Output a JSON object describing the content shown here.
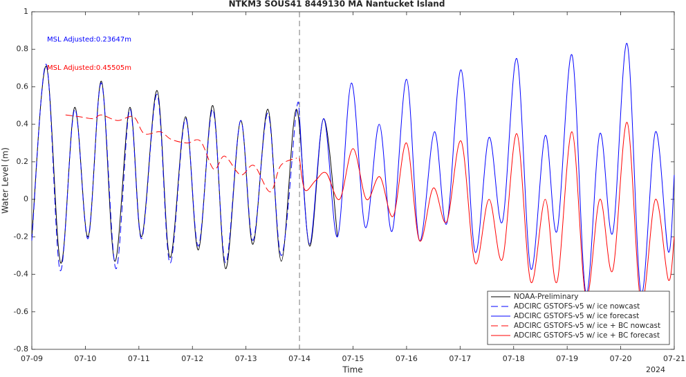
{
  "chart_data": {
    "type": "line",
    "title": "NTKM3 SOUS41 8449130 MA Nantucket Island",
    "x_label": "Time",
    "y_label": "Water Level (m)",
    "year_label": "2024",
    "annotations": [
      {
        "text": "MSL Adjusted:0.23647m",
        "color": "#0000ff"
      },
      {
        "text": "MSL Adjusted:0.45505m",
        "color": "#ff0000"
      }
    ],
    "xlim": [
      0,
      12
    ],
    "xticks": [
      {
        "value": 0,
        "label": "07-09"
      },
      {
        "value": 1,
        "label": "07-10"
      },
      {
        "value": 2,
        "label": "07-11"
      },
      {
        "value": 3,
        "label": "07-12"
      },
      {
        "value": 4,
        "label": "07-13"
      },
      {
        "value": 5,
        "label": "07-14"
      },
      {
        "value": 6,
        "label": "07-15"
      },
      {
        "value": 7,
        "label": "07-16"
      },
      {
        "value": 8,
        "label": "07-17"
      },
      {
        "value": 9,
        "label": "07-18"
      },
      {
        "value": 10,
        "label": "07-19"
      },
      {
        "value": 11,
        "label": "07-20"
      },
      {
        "value": 12,
        "label": "07-21"
      }
    ],
    "ylim": [
      -0.8,
      1
    ],
    "yticks": [
      -0.8,
      -0.6,
      -0.4,
      -0.2,
      0,
      0.2,
      0.4,
      0.6,
      0.8,
      1
    ],
    "divider_x": 5,
    "series": [
      {
        "name": "NOAA-Preliminary",
        "color": "#000000",
        "dash": false,
        "x": [
          0,
          0.27,
          0.54,
          0.8,
          1.05,
          1.3,
          1.55,
          1.83,
          2.05,
          2.34,
          2.58,
          2.87,
          3.11,
          3.38,
          3.62,
          3.9,
          4.13,
          4.41,
          4.66,
          4.94,
          5.19,
          5.45,
          5.71
        ],
        "values": [
          -0.2,
          0.71,
          -0.34,
          0.49,
          -0.2,
          0.63,
          -0.33,
          0.49,
          -0.2,
          0.58,
          -0.31,
          0.44,
          -0.27,
          0.5,
          -0.37,
          0.42,
          -0.24,
          0.48,
          -0.33,
          0.48,
          -0.25,
          0.43,
          -0.2
        ]
      },
      {
        "name": "ADCIRC GSTOFS-v5 w/ ice nowcast",
        "color": "#0000ff",
        "dash": true,
        "x": [
          0,
          0.27,
          0.53,
          0.8,
          1.05,
          1.3,
          1.57,
          1.83,
          2.05,
          2.34,
          2.58,
          2.87,
          3.11,
          3.38,
          3.62,
          3.9,
          4.13,
          4.41,
          4.66,
          4.94,
          5
        ],
        "values": [
          -0.22,
          0.72,
          -0.38,
          0.48,
          -0.21,
          0.62,
          -0.37,
          0.48,
          -0.21,
          0.56,
          -0.34,
          0.43,
          -0.25,
          0.48,
          -0.34,
          0.42,
          -0.22,
          0.46,
          -0.3,
          0.47,
          0.44
        ]
      },
      {
        "name": "ADCIRC GSTOFS-v5 w/ ice forecast",
        "color": "#0000ff",
        "dash": false,
        "x": [
          5,
          5.19,
          5.45,
          5.71,
          5.97,
          6.23,
          6.49,
          6.73,
          7.0,
          7.24,
          7.52,
          7.75,
          8.02,
          8.28,
          8.54,
          8.79,
          9.06,
          9.32,
          9.59,
          9.81,
          10.09,
          10.35,
          10.61,
          10.85,
          11.12,
          11.38,
          11.65,
          11.89,
          12
        ],
        "values": [
          0.44,
          -0.24,
          0.43,
          -0.2,
          0.62,
          -0.15,
          0.4,
          -0.17,
          0.64,
          -0.22,
          0.36,
          -0.13,
          0.69,
          -0.28,
          0.33,
          -0.12,
          0.75,
          -0.37,
          0.34,
          -0.17,
          0.77,
          -0.5,
          0.35,
          -0.18,
          0.83,
          -0.5,
          0.36,
          -0.28,
          0.13
        ]
      },
      {
        "name": "ADCIRC GSTOFS-v5 w/ ice + BC nowcast",
        "color": "#ff0000",
        "dash": true,
        "x": [
          0.63,
          0.9,
          1.15,
          1.3,
          1.6,
          1.9,
          2.1,
          2.4,
          2.6,
          2.9,
          3.15,
          3.4,
          3.6,
          3.9,
          4.15,
          4.45,
          4.65,
          4.95
        ],
        "values": [
          0.45,
          0.44,
          0.43,
          0.45,
          0.42,
          0.44,
          0.35,
          0.36,
          0.32,
          0.3,
          0.31,
          0.16,
          0.23,
          0.13,
          0.18,
          0.04,
          0.18,
          0.22
        ]
      },
      {
        "name": "ADCIRC GSTOFS-v5 w/ ice + BC forecast",
        "color": "#ff0000",
        "dash": false,
        "x": [
          5.0,
          5.1,
          5.3,
          5.5,
          5.75,
          6.0,
          6.25,
          6.5,
          6.75,
          7.0,
          7.24,
          7.5,
          7.75,
          8.02,
          8.28,
          8.54,
          8.79,
          9.06,
          9.32,
          9.59,
          9.81,
          10.09,
          10.35,
          10.61,
          10.85,
          11.12,
          11.38,
          11.65,
          11.89,
          12.0
        ],
        "values": [
          0.22,
          0.05,
          0.1,
          0.14,
          0.0,
          0.27,
          0.0,
          0.12,
          -0.09,
          0.3,
          -0.22,
          0.06,
          -0.12,
          0.31,
          -0.34,
          0.0,
          -0.32,
          0.35,
          -0.44,
          0.0,
          -0.44,
          0.36,
          -0.52,
          0.0,
          -0.38,
          0.41,
          -0.55,
          0.0,
          -0.43,
          -0.2
        ]
      }
    ]
  }
}
